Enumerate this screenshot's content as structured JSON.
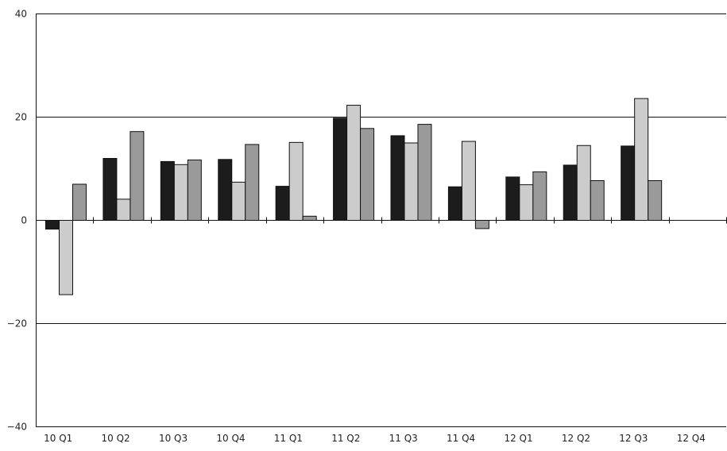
{
  "chart_data": {
    "type": "bar",
    "title": "",
    "xlabel": "",
    "ylabel": "",
    "ylim": [
      -40,
      40
    ],
    "yticks": [
      40,
      20,
      0,
      -20,
      -40
    ],
    "yticks_labels": [
      "40",
      "20",
      "0",
      "−20",
      "−40"
    ],
    "grid": true,
    "legend": "none",
    "categories": [
      "10 Q1",
      "10 Q2",
      "10 Q3",
      "10 Q4",
      "11 Q1",
      "11 Q2",
      "11 Q3",
      "11 Q4",
      "12 Q1",
      "12 Q2",
      "12 Q3",
      "12 Q4"
    ],
    "series": [
      {
        "color": "#1c1c1c",
        "values": [
          -1.7,
          12.0,
          11.4,
          11.8,
          6.6,
          19.8,
          16.4,
          6.5,
          8.4,
          10.7,
          14.4,
          null
        ]
      },
      {
        "color": "#cccccc",
        "values": [
          -14.4,
          4.1,
          10.8,
          7.4,
          15.1,
          22.3,
          15.0,
          15.3,
          6.9,
          14.5,
          23.6,
          null
        ]
      },
      {
        "color": "#9a9a9a",
        "values": [
          7.0,
          17.2,
          11.7,
          14.7,
          0.8,
          17.8,
          18.6,
          -1.6,
          9.4,
          7.7,
          7.7,
          null
        ]
      }
    ]
  }
}
